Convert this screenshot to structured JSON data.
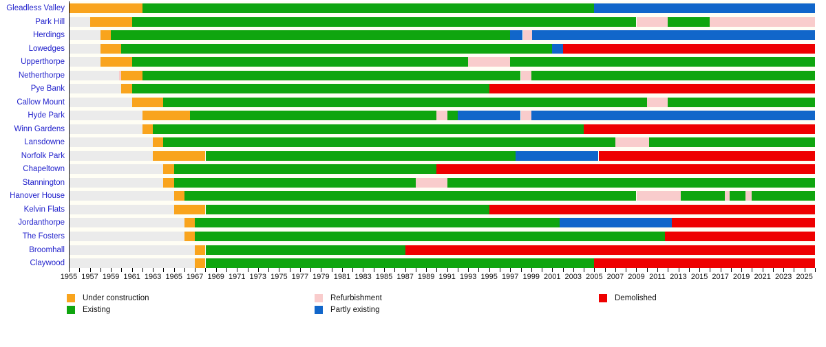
{
  "chart_data": {
    "type": "bar",
    "variant": "horizontal-status-timeline",
    "title": "",
    "axis": {
      "start": 1955,
      "end": 2026,
      "tick_step": 1,
      "tick_labels": [
        1955,
        1957,
        1959,
        1961,
        1963,
        1965,
        1967,
        1969,
        1971,
        1973,
        1975,
        1977,
        1979,
        1981,
        1983,
        1985,
        1987,
        1989,
        1991,
        1993,
        1995,
        1997,
        1999,
        2001,
        2003,
        2005,
        2007,
        2009,
        2011,
        2013,
        2015,
        2017,
        2019,
        2021,
        2023,
        2025
      ]
    },
    "states": {
      "not_built": "#ebebeb",
      "under_construction": "#f9a41d",
      "existing": "#0fa50f",
      "refurbishment": "#f9cccc",
      "partly_existing": "#1166ca",
      "demolished": "#ee0000"
    },
    "legend": [
      {
        "label": "Under construction",
        "state": "under_construction",
        "col": 0,
        "row": 0
      },
      {
        "label": "Existing",
        "state": "existing",
        "col": 0,
        "row": 1
      },
      {
        "label": "Refurbishment",
        "state": "refurbishment",
        "col": 1,
        "row": 0
      },
      {
        "label": "Partly existing",
        "state": "partly_existing",
        "col": 1,
        "row": 1
      },
      {
        "label": "Demolished",
        "state": "demolished",
        "col": 2,
        "row": 0
      }
    ],
    "rows": [
      {
        "name": "Gleadless Valley",
        "segments": [
          [
            1955,
            1962,
            "under_construction"
          ],
          [
            1962,
            2005,
            "existing"
          ],
          [
            2005,
            2026,
            "partly_existing"
          ]
        ]
      },
      {
        "name": "Park Hill",
        "segments": [
          [
            1955,
            1957,
            "not_built"
          ],
          [
            1957,
            1961,
            "under_construction"
          ],
          [
            1961,
            2009,
            "existing"
          ],
          [
            2009,
            2012,
            "refurbishment"
          ],
          [
            2012,
            2016,
            "existing"
          ],
          [
            2016,
            2026,
            "refurbishment"
          ]
        ]
      },
      {
        "name": "Herdings",
        "segments": [
          [
            1955,
            1958,
            "not_built"
          ],
          [
            1958,
            1959,
            "under_construction"
          ],
          [
            1959,
            1997,
            "existing"
          ],
          [
            1997,
            1998.2,
            "partly_existing"
          ],
          [
            1998.2,
            1999.1,
            "refurbishment"
          ],
          [
            1999.1,
            2026,
            "partly_existing"
          ]
        ]
      },
      {
        "name": "Lowedges",
        "segments": [
          [
            1955,
            1958,
            "not_built"
          ],
          [
            1958,
            1960,
            "under_construction"
          ],
          [
            1960,
            2001,
            "existing"
          ],
          [
            2001,
            2002,
            "partly_existing"
          ],
          [
            2002,
            2026,
            "demolished"
          ]
        ]
      },
      {
        "name": "Upperthorpe",
        "segments": [
          [
            1955,
            1958,
            "not_built"
          ],
          [
            1958,
            1961,
            "under_construction"
          ],
          [
            1961,
            1993,
            "existing"
          ],
          [
            1993,
            1997,
            "refurbishment"
          ],
          [
            1997,
            2026,
            "existing"
          ]
        ]
      },
      {
        "name": "Netherthorpe",
        "segments": [
          [
            1955,
            1959.8,
            "not_built"
          ],
          [
            1959.8,
            1960,
            "refurbishment"
          ],
          [
            1960,
            1962,
            "under_construction"
          ],
          [
            1962,
            1998,
            "existing"
          ],
          [
            1998,
            1999,
            "refurbishment"
          ],
          [
            1999,
            2026,
            "existing"
          ]
        ]
      },
      {
        "name": "Pye Bank",
        "segments": [
          [
            1955,
            1960,
            "not_built"
          ],
          [
            1960,
            1961,
            "under_construction"
          ],
          [
            1961,
            1995,
            "existing"
          ],
          [
            1995,
            2026,
            "demolished"
          ]
        ]
      },
      {
        "name": "Callow Mount",
        "segments": [
          [
            1955,
            1961,
            "not_built"
          ],
          [
            1961,
            1964,
            "under_construction"
          ],
          [
            1964,
            2010,
            "existing"
          ],
          [
            2010,
            2012,
            "refurbishment"
          ],
          [
            2012,
            2026,
            "existing"
          ]
        ]
      },
      {
        "name": "Hyde Park",
        "segments": [
          [
            1955,
            1962,
            "not_built"
          ],
          [
            1962,
            1966.5,
            "under_construction"
          ],
          [
            1966.5,
            1990,
            "existing"
          ],
          [
            1990,
            1991,
            "refurbishment"
          ],
          [
            1991,
            1992,
            "existing"
          ],
          [
            1992,
            1998,
            "partly_existing"
          ],
          [
            1998,
            1999,
            "refurbishment"
          ],
          [
            1999,
            2026,
            "partly_existing"
          ]
        ]
      },
      {
        "name": "Winn Gardens",
        "segments": [
          [
            1955,
            1962,
            "not_built"
          ],
          [
            1962,
            1963,
            "under_construction"
          ],
          [
            1963,
            2004,
            "existing"
          ],
          [
            2004,
            2026,
            "demolished"
          ]
        ]
      },
      {
        "name": "Lansdowne",
        "segments": [
          [
            1955,
            1963,
            "not_built"
          ],
          [
            1963,
            1964,
            "under_construction"
          ],
          [
            1964,
            2007,
            "existing"
          ],
          [
            2007,
            2010.2,
            "refurbishment"
          ],
          [
            2010.2,
            2026,
            "existing"
          ]
        ]
      },
      {
        "name": "Norfolk Park",
        "segments": [
          [
            1955,
            1963,
            "not_built"
          ],
          [
            1963,
            1968,
            "under_construction"
          ],
          [
            1968,
            1997.5,
            "existing"
          ],
          [
            1997.5,
            2005.4,
            "partly_existing"
          ],
          [
            2005.4,
            2026,
            "demolished"
          ]
        ]
      },
      {
        "name": "Chapeltown",
        "segments": [
          [
            1955,
            1964,
            "not_built"
          ],
          [
            1964,
            1965,
            "under_construction"
          ],
          [
            1965,
            1990,
            "existing"
          ],
          [
            1990,
            2026,
            "demolished"
          ]
        ]
      },
      {
        "name": "Stannington",
        "segments": [
          [
            1955,
            1964,
            "not_built"
          ],
          [
            1964,
            1965,
            "under_construction"
          ],
          [
            1965,
            1988,
            "existing"
          ],
          [
            1988,
            1991,
            "refurbishment"
          ],
          [
            1991,
            2026,
            "existing"
          ]
        ]
      },
      {
        "name": "Hanover House",
        "segments": [
          [
            1955,
            1965,
            "not_built"
          ],
          [
            1965,
            1966,
            "under_construction"
          ],
          [
            1966,
            2009,
            "existing"
          ],
          [
            2009,
            2013.2,
            "refurbishment"
          ],
          [
            2013.2,
            2017.4,
            "existing"
          ],
          [
            2017.4,
            2017.9,
            "refurbishment"
          ],
          [
            2017.9,
            2019.4,
            "existing"
          ],
          [
            2019.4,
            2020,
            "refurbishment"
          ],
          [
            2020,
            2026,
            "existing"
          ]
        ]
      },
      {
        "name": "Kelvin Flats",
        "segments": [
          [
            1955,
            1965,
            "not_built"
          ],
          [
            1965,
            1968,
            "under_construction"
          ],
          [
            1968,
            1995,
            "existing"
          ],
          [
            1995,
            2026,
            "demolished"
          ]
        ]
      },
      {
        "name": "Jordanthorpe",
        "segments": [
          [
            1955,
            1966,
            "not_built"
          ],
          [
            1966,
            1967,
            "under_construction"
          ],
          [
            1967,
            2001.7,
            "existing"
          ],
          [
            2001.7,
            2012.4,
            "partly_existing"
          ],
          [
            2012.4,
            2026,
            "demolished"
          ]
        ]
      },
      {
        "name": "The Fosters",
        "segments": [
          [
            1955,
            1966,
            "not_built"
          ],
          [
            1966,
            1967,
            "under_construction"
          ],
          [
            1967,
            2011.7,
            "existing"
          ],
          [
            2011.7,
            2026,
            "demolished"
          ]
        ]
      },
      {
        "name": "Broomhall",
        "segments": [
          [
            1955,
            1967,
            "not_built"
          ],
          [
            1967,
            1968,
            "under_construction"
          ],
          [
            1968,
            1987,
            "existing"
          ],
          [
            1987,
            2026,
            "demolished"
          ]
        ]
      },
      {
        "name": "Claywood",
        "segments": [
          [
            1955,
            1967,
            "not_built"
          ],
          [
            1967,
            1968,
            "under_construction"
          ],
          [
            1968,
            2005,
            "existing"
          ],
          [
            2005,
            2026,
            "demolished"
          ]
        ]
      }
    ]
  }
}
